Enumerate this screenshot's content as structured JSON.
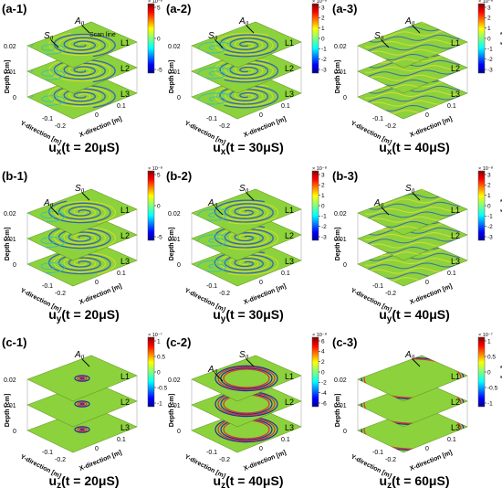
{
  "chart_data": [
    {
      "type": "heatmap",
      "id": "a-1",
      "panel_label": "(a-1)",
      "component": "u",
      "component_sub": "x",
      "time_label": "(t = 20μS)",
      "ylabel": "Depth [cm]",
      "xlabel": "X-direction [m]",
      "zlabel": "Y-direction [m]",
      "depth_ticks": [
        "0.02",
        "0.01",
        "0"
      ],
      "x_ticks": [
        "0",
        "0.1"
      ],
      "y_ticks": [
        "-0.1",
        "-0.2"
      ],
      "layers": [
        "L1",
        "L2",
        "L3"
      ],
      "annotations": [
        {
          "text": "A",
          "sub": "0"
        },
        {
          "text": "S",
          "sub": "0"
        },
        {
          "text": "Scan line",
          "sub": ""
        }
      ],
      "colorbar": {
        "ticks": [
          "5",
          "0",
          "-5"
        ],
        "exponent": "× 10⁻⁸",
        "unit": ""
      },
      "pattern": "spiral"
    },
    {
      "type": "heatmap",
      "id": "a-2",
      "panel_label": "(a-2)",
      "component": "u",
      "component_sub": "x",
      "time_label": "(t = 30μS)",
      "ylabel": "Depth [cm]",
      "xlabel": "X-direction [m]",
      "zlabel": "Y-direction [m]",
      "depth_ticks": [
        "0.02",
        "0.01",
        "0"
      ],
      "x_ticks": [
        "0",
        "0.1"
      ],
      "y_ticks": [
        "-0.1",
        "-0.2"
      ],
      "layers": [
        "L1",
        "L2",
        "L3"
      ],
      "annotations": [
        {
          "text": "A",
          "sub": "0"
        },
        {
          "text": "S",
          "sub": "0"
        }
      ],
      "colorbar": {
        "ticks": [
          "3",
          "2",
          "1",
          "0",
          "-1",
          "-2",
          "-3"
        ],
        "exponent": "× 10⁻⁸",
        "unit": ""
      },
      "pattern": "spiral"
    },
    {
      "type": "heatmap",
      "id": "a-3",
      "panel_label": "(a-3)",
      "component": "u",
      "component_sub": "x",
      "time_label": "(t = 40μS)",
      "ylabel": "Depth [cm]",
      "xlabel": "X-direction [m]",
      "zlabel": "Y-direction [m]",
      "depth_ticks": [
        "0.02",
        "0.01",
        "0"
      ],
      "x_ticks": [
        "0",
        "0.1"
      ],
      "y_ticks": [
        "-0.1",
        "-0.2"
      ],
      "layers": [
        "L1",
        "L2",
        "L3"
      ],
      "annotations": [
        {
          "text": "A",
          "sub": "0"
        },
        {
          "text": "S",
          "sub": "0"
        }
      ],
      "colorbar": {
        "ticks": [
          "3",
          "2",
          "1",
          "0",
          "-1",
          "-2",
          "-3"
        ],
        "exponent": "× 10⁻⁸",
        "unit": "[m]"
      },
      "pattern": "wave"
    },
    {
      "type": "heatmap",
      "id": "b-1",
      "panel_label": "(b-1)",
      "component": "u",
      "component_sub": "y",
      "time_label": "(t = 20μS)",
      "ylabel": "Depth [cm]",
      "xlabel": "X-direction [m]",
      "zlabel": "Y-direction [m]",
      "depth_ticks": [
        "0.02",
        "0.01",
        "0"
      ],
      "x_ticks": [
        "0",
        "0.1"
      ],
      "y_ticks": [
        "-0.1",
        "-0.2"
      ],
      "layers": [
        "L1",
        "L2",
        "L3"
      ],
      "annotations": [
        {
          "text": "S",
          "sub": "0"
        },
        {
          "text": "A",
          "sub": "0"
        }
      ],
      "colorbar": {
        "ticks": [
          "5",
          "0",
          "-5"
        ],
        "exponent": "× 10⁻⁸",
        "unit": ""
      },
      "pattern": "spiral"
    },
    {
      "type": "heatmap",
      "id": "b-2",
      "panel_label": "(b-2)",
      "component": "u",
      "component_sub": "y",
      "time_label": "(t = 30μS)",
      "ylabel": "Depth [cm]",
      "xlabel": "X-direction [m]",
      "zlabel": "Y-direction [m]",
      "depth_ticks": [
        "0.02",
        "0.01",
        "0"
      ],
      "x_ticks": [
        "0",
        "0.1"
      ],
      "y_ticks": [
        "-0.1",
        "-0.2"
      ],
      "layers": [
        "L1",
        "L2",
        "L3"
      ],
      "annotations": [
        {
          "text": "S",
          "sub": "0"
        },
        {
          "text": "A",
          "sub": "0"
        }
      ],
      "colorbar": {
        "ticks": [
          "3",
          "2",
          "1",
          "0",
          "-1",
          "-2",
          "-3"
        ],
        "exponent": "× 10⁻⁸",
        "unit": ""
      },
      "pattern": "spiral"
    },
    {
      "type": "heatmap",
      "id": "b-3",
      "panel_label": "(b-3)",
      "component": "u",
      "component_sub": "y",
      "time_label": "(t = 40μS)",
      "ylabel": "Depth [cm]",
      "xlabel": "X-direction [m]",
      "zlabel": "Y-direction [m]",
      "depth_ticks": [
        "0.02",
        "0.01",
        "0"
      ],
      "x_ticks": [
        "0",
        "0.1"
      ],
      "y_ticks": [
        "-0.1",
        "-0.2"
      ],
      "layers": [
        "L1",
        "L2",
        "L3"
      ],
      "annotations": [
        {
          "text": "S",
          "sub": "0"
        },
        {
          "text": "A",
          "sub": "0"
        }
      ],
      "colorbar": {
        "ticks": [
          "3",
          "2",
          "1",
          "0",
          "-1",
          "-2",
          "-3"
        ],
        "exponent": "× 10⁻⁸",
        "unit": "[m]"
      },
      "pattern": "wave"
    },
    {
      "type": "heatmap",
      "id": "c-1",
      "panel_label": "(c-1)",
      "component": "u",
      "component_sub": "z",
      "time_label": "(t = 20μS)",
      "ylabel": "Depth [cm]",
      "xlabel": "X-direction [m]",
      "zlabel": "Y-direction [m]",
      "depth_ticks": [
        "0.02",
        "0.01",
        "0"
      ],
      "x_ticks": [
        "0",
        "0.1"
      ],
      "y_ticks": [
        "-0.1",
        "-0.2"
      ],
      "layers": [
        "L1",
        "L2",
        "L3"
      ],
      "annotations": [
        {
          "text": "A",
          "sub": "0"
        }
      ],
      "colorbar": {
        "ticks": [
          "1",
          "0.5",
          "0",
          "-0.5",
          "-1"
        ],
        "exponent": "× 10⁻⁷",
        "unit": ""
      },
      "pattern": "ring-small"
    },
    {
      "type": "heatmap",
      "id": "c-2",
      "panel_label": "(c-2)",
      "component": "u",
      "component_sub": "z",
      "time_label": "(t = 40μS)",
      "ylabel": "Depth [cm]",
      "xlabel": "X-direction [m]",
      "zlabel": "Y-direction [m]",
      "depth_ticks": [
        "0.02",
        "0.01",
        "0"
      ],
      "x_ticks": [
        "0",
        "0.1"
      ],
      "y_ticks": [
        "-0.1",
        "-0.2"
      ],
      "layers": [
        "L1",
        "L2",
        "L3"
      ],
      "annotations": [
        {
          "text": "S",
          "sub": "0"
        },
        {
          "text": "A",
          "sub": "0"
        }
      ],
      "colorbar": {
        "ticks": [
          "6",
          "4",
          "2",
          "0",
          "-2",
          "-4",
          "-6"
        ],
        "exponent": "× 10⁻⁸",
        "unit": ""
      },
      "pattern": "ring-mid"
    },
    {
      "type": "heatmap",
      "id": "c-3",
      "panel_label": "(c-3)",
      "component": "u",
      "component_sub": "z",
      "time_label": "(t = 60μS)",
      "ylabel": "Depth [cm]",
      "xlabel": "X-direction [m]",
      "zlabel": "Y-direction [m]",
      "depth_ticks": [
        "0.02",
        "0.01",
        "0"
      ],
      "x_ticks": [
        "0",
        "0.1"
      ],
      "y_ticks": [
        "-0.1",
        "-0.2"
      ],
      "layers": [
        "L1",
        "L2",
        "L3"
      ],
      "annotations": [
        {
          "text": "A",
          "sub": "0"
        }
      ],
      "colorbar": {
        "ticks": [
          "1",
          "0.5",
          "0",
          "-0.5",
          "-1"
        ],
        "exponent": "× 10⁻⁷",
        "unit": "[m]"
      },
      "pattern": "ring-large"
    }
  ]
}
